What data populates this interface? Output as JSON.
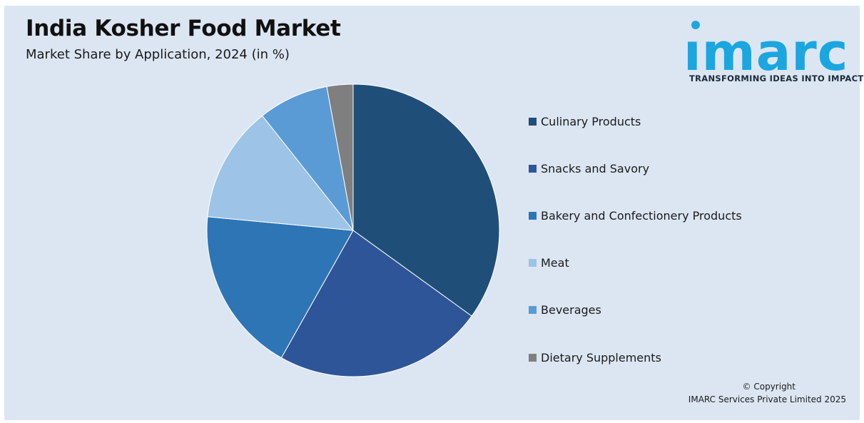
{
  "header": {
    "title": "India Kosher Food Market",
    "subtitle": "Market Share by Application, 2024 (in %)"
  },
  "logo": {
    "wordmark": "imarc",
    "tagline": "TRANSFORMING IDEAS INTO IMPACT",
    "color": "#1ba6e0"
  },
  "footer": {
    "copyright": "© Copyright",
    "company": "IMARC Services Private Limited 2025"
  },
  "chart_data": {
    "type": "pie",
    "title": "India Kosher Food Market",
    "subtitle": "Market Share by Application, 2024 (in %)",
    "categories": [
      "Culinary Products",
      "Snacks and Savory",
      "Bakery and Confectionery Products",
      "Meat",
      "Beverages",
      "Dietary Supplements"
    ],
    "values": [
      35.1,
      23.3,
      18.4,
      12.9,
      7.8,
      2.9
    ],
    "colors": [
      "#1f4e79",
      "#2e5597",
      "#2e75b6",
      "#9dc3e6",
      "#5b9bd5",
      "#7f7f7f"
    ],
    "start_angle_deg": 0,
    "direction": "clockwise",
    "legend_position": "right"
  }
}
